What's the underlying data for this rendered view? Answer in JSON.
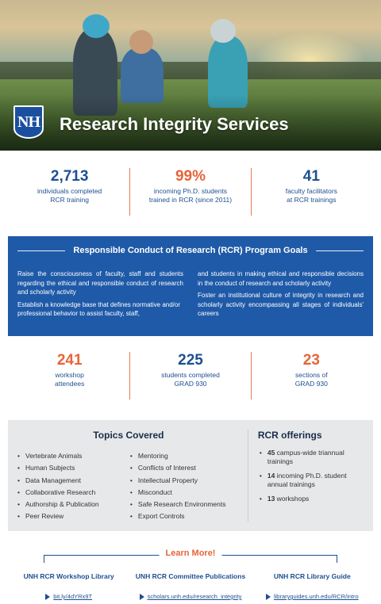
{
  "header": {
    "logo_text": "NH",
    "title": "Research Integrity Services"
  },
  "stats_top": [
    {
      "value": "2,713",
      "desc_line1": "individuals completed",
      "desc_line2": "RCR training",
      "color": "#1e4f8f"
    },
    {
      "value": "99%",
      "desc_line1": "incoming Ph.D. students",
      "desc_line2": "trained in RCR (since 2011)",
      "color": "#e6653a"
    },
    {
      "value": "41",
      "desc_line1": "faculty facilitators",
      "desc_line2": "at RCR trainings",
      "color": "#1e4f8f"
    }
  ],
  "goals": {
    "title": "Responsible Conduct of Research (RCR) Program Goals",
    "left": [
      "Raise the consciousness of faculty, staff and students regarding the ethical and responsible conduct of research and scholarly activity",
      "Establish a knowledge base that defines normative and/or professional behavior to assist faculty, staff,"
    ],
    "right": [
      "and students in making ethical and responsible decisions in the conduct of research and scholarly activity",
      "Foster an institutional culture of integrity in research and scholarly activity encompassing all stages of individuals' careers"
    ]
  },
  "stats_mid": [
    {
      "value": "241",
      "desc_line1": "workshop",
      "desc_line2": "attendees",
      "color": "#e6653a"
    },
    {
      "value": "225",
      "desc_line1": "students completed",
      "desc_line2": "GRAD 930",
      "color": "#1e4f8f"
    },
    {
      "value": "23",
      "desc_line1": "sections of",
      "desc_line2": "GRAD 930",
      "color": "#e6653a"
    }
  ],
  "topics": {
    "title": "Topics Covered",
    "col1": [
      "Vertebrate Animals",
      "Human Subjects",
      "Data Management",
      "Collaborative Research",
      "Authorship & Publication",
      "Peer Review"
    ],
    "col2": [
      "Mentoring",
      "Conflicts of Interest",
      "Intellectual Property",
      "Misconduct",
      "Safe Research Environments",
      "Export Controls"
    ]
  },
  "offerings": {
    "title": "RCR offerings",
    "items": [
      {
        "bold": "45",
        "text": " campus-wide triannual trainings"
      },
      {
        "bold": "14",
        "text": " incoming Ph.D. student annual trainings"
      },
      {
        "bold": "13",
        "text": " workshops"
      }
    ]
  },
  "learn_more": {
    "label": "Learn More!",
    "links": [
      {
        "title": "UNH RCR Workshop Library",
        "url": "bit.ly/4dYRx9T"
      },
      {
        "title": "UNH RCR Committee Publications",
        "url": "scholars.unh.edu/research_integrity"
      },
      {
        "title": "UNH RCR Library Guide",
        "url": "libraryguides.unh.edu/RCR/intro"
      }
    ]
  }
}
